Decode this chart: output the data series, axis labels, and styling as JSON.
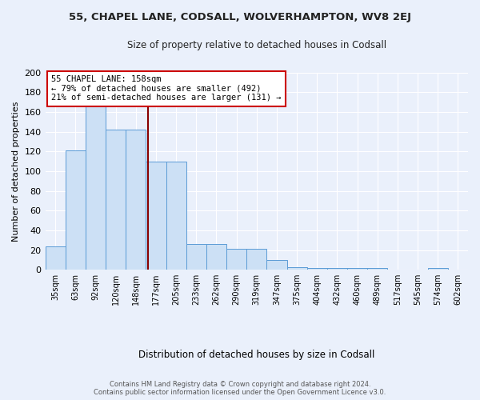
{
  "title1": "55, CHAPEL LANE, CODSALL, WOLVERHAMPTON, WV8 2EJ",
  "title2": "Size of property relative to detached houses in Codsall",
  "xlabel": "Distribution of detached houses by size in Codsall",
  "ylabel": "Number of detached properties",
  "bar_labels": [
    "35sqm",
    "63sqm",
    "92sqm",
    "120sqm",
    "148sqm",
    "177sqm",
    "205sqm",
    "233sqm",
    "262sqm",
    "290sqm",
    "319sqm",
    "347sqm",
    "375sqm",
    "404sqm",
    "432sqm",
    "460sqm",
    "489sqm",
    "517sqm",
    "545sqm",
    "574sqm",
    "602sqm"
  ],
  "bar_heights": [
    24,
    121,
    168,
    142,
    142,
    110,
    110,
    26,
    26,
    21,
    21,
    10,
    3,
    2,
    2,
    2,
    2,
    0,
    0,
    2,
    0
  ],
  "bar_color": "#cce0f5",
  "bar_edge_color": "#5b9bd5",
  "background_color": "#eaf0fb",
  "grid_color": "#ffffff",
  "annotation_text": "55 CHAPEL LANE: 158sqm\n← 79% of detached houses are smaller (492)\n21% of semi-detached houses are larger (131) →",
  "annotation_box_color": "#ffffff",
  "annotation_box_edge": "#cc0000",
  "footer_text": "Contains HM Land Registry data © Crown copyright and database right 2024.\nContains public sector information licensed under the Open Government Licence v3.0.",
  "ylim": [
    0,
    200
  ],
  "yticks": [
    0,
    20,
    40,
    60,
    80,
    100,
    120,
    140,
    160,
    180,
    200
  ],
  "red_line_color": "#880000",
  "red_line_x": 4.6,
  "fig_bg": "#eaf0fb"
}
